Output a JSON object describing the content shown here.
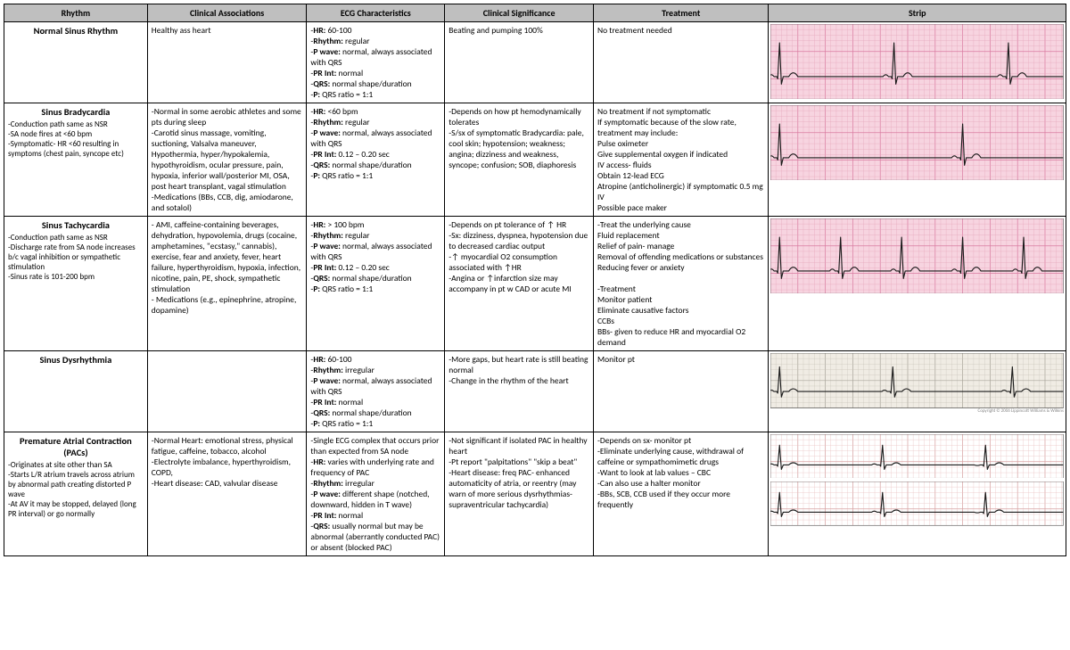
{
  "headers": [
    "Rhythm",
    "Clinical Associations",
    "ECG Characteristics",
    "Clinical Significance",
    "Treatment",
    "Strip"
  ],
  "rows": [
    {
      "name": "Normal Sinus Rhythm",
      "sub": "",
      "assoc": "Healthy ass heart",
      "ecg": "-<b>HR:</b> 60-100<br>-<b>Rhythm:</b> regular<br>-<b>P wave:</b> normal, always associated with QRS<br>-<b>PR Int:</b> normal<br>-<b>QRS:</b> normal shape/duration<br>-<b>P:</b> QRS ratio = 1:1",
      "sig": "Beating and pumping 100%",
      "tx": "No treatment needed",
      "strip": {
        "bg": "#f7d4e0",
        "grid": "#e6a6bb",
        "majGrid": "#d97aa0",
        "hr": 72,
        "rhythm": "regular",
        "pac": false,
        "height": 82
      }
    },
    {
      "name": "Sinus Bradycardia",
      "sub": "-Conduction path same as NSR<br>-SA node fires at &lt;60 bpm<br>-Symptomatic- HR &lt;60 resulting in symptoms (chest pain, syncope etc)",
      "assoc": "-Normal in some aerobic athletes and some pts during sleep<br>-Carotid sinus massage, vomiting, suctioning, Valsalva maneuver, Hypothermia, hyper/hypokalemia, hypothyroidism, ocular pressure, pain, hypoxia, inferior wall/posterior MI, OSA, post heart transplant, vagal stimulation<br>-Medications (BBs, CCB, dig, amiodarone, and sotalol)",
      "ecg": "-<b>HR:</b> &lt;60 bpm<br>-<b>Rhythm:</b> regular<br>-<b>P wave:</b> normal, always associated with QRS<br>-<b>PR Int:</b> 0.12 – 0.20 sec<br>-<b>QRS:</b> normal shape/duration<br>-<b>P:</b> QRS ratio = 1:1",
      "sig": "-Depends on how pt hemodynamically tolerates<br>-S/sx of symptomatic Bradycardia: pale, cool skin; hypotension; weakness; angina; dizziness and weakness, syncope; confusion; SOB, diaphoresis",
      "tx": "No treatment if not symptomatic<br>If symptomatic because of the slow rate, treatment may include:<br>Pulse oximeter<br>Give supplemental oxygen if indicated<br>IV access- fluids<br>Obtain 12-lead ECG<br>Atropine (anticholinergic) if symptomatic 0.5 mg IV<br>Possible pace maker",
      "strip": {
        "bg": "#f7d4e0",
        "grid": "#e6a6bb",
        "majGrid": "#d97aa0",
        "hr": 45,
        "rhythm": "regular",
        "pac": false,
        "height": 82
      }
    },
    {
      "name": "Sinus Tachycardia",
      "sub": "-Conduction path same as NSR<br>-Discharge rate from SA node increases b/c vagal inhibition or sympathetic stimulation<br>-Sinus rate is 101-200 bpm",
      "assoc": "- AMI, caffeine-containing beverages, dehydration, hypovolemia, drugs (cocaine, amphetamines, \"ecstasy,\" cannabis), exercise, fear and anxiety, fever, heart failure, hyperthyroidism, hypoxia, infection, nicotine, pain, PE, shock, sympathetic stimulation<br>- Medications (e.g., epinephrine, atropine, dopamine)",
      "ecg": "-<b>HR:</b> &gt; 100 bpm<br>-<b>Rhythm:</b> regular<br>-<b>P wave:</b> normal, always associated with QRS<br>-<b>PR Int:</b> 0.12 – 0.20 sec<br>-<b>QRS:</b> normal shape/duration<br>-<b>P:</b> QRS ratio = 1:1",
      "sig": "-Depends on pt tolerance of ↑ HR<br>-Sx: dizziness, dyspnea, hypotension due to decreased cardiac output<br>-↑ myocardial O2 consumption associated with ↑HR<br>-Angina or ↑infarction size may accompany in pt w CAD or acute MI",
      "tx": "-Treat the underlying cause<br>Fluid replacement<br>Relief of pain- manage<br>Removal of offending medications or substances<br>Reducing fever or anxiety<br><br>-Treatment<br>Monitor patient<br>Eliminate causative factors<br>CCBs<br>BBs- given to reduce HR and myocardial O2 demand",
      "strip": {
        "bg": "#f7d4e0",
        "grid": "#e6a6bb",
        "majGrid": "#d97aa0",
        "hr": 135,
        "rhythm": "regular",
        "pac": false,
        "height": 82
      }
    },
    {
      "name": "Sinus Dysrhythmia",
      "sub": "",
      "assoc": "",
      "ecg": "-<b>HR:</b> 60-100<br>-<b>Rhythm:</b> irregular<br>-<b>P wave:</b> normal, always associated with QRS<br>-<b>PR Int:</b> normal<br>-<b>QRS:</b> normal shape/duration<br>-<b>P:</b> QRS ratio = 1:1",
      "sig": "-More gaps, but heart rate is still beating normal<br>-Change in the rhythm of the heart",
      "tx": "Monitor pt",
      "strip": {
        "bg": "#f0ece4",
        "grid": "#c8c4ba",
        "majGrid": "#a8a49a",
        "hr": 75,
        "rhythm": "irregular",
        "pac": false,
        "height": 60,
        "caption": true
      }
    },
    {
      "name": "Premature Atrial Contraction (PACs)",
      "sub": "-Originates at site other than SA<br>-Starts L/R atrium travels across atrium by abnormal path creating distorted P wave<br>-At AV it may be stopped, delayed (long PR interval) or go normally",
      "assoc": "-Normal Heart: emotional stress, physical fatigue, caffeine, tobacco, alcohol<br>-Electrolyte imbalance, hyperthyroidism, COPD,<br>-Heart disease: CAD, valvular disease",
      "ecg": "-Single ECG complex that occurs prior than expected from SA node<br>-<b>HR:</b> varies with underlying rate and frequency of PAC<br>-<b>Rhythm:</b> irregular<br>-<b>P wave:</b> different shape (notched, downward, hidden in T wave)<br>-<b>PR Int:</b> normal<br>-<b>QRS:</b> usually normal but may be abnormal (aberrantly conducted PAC) or absent (blocked PAC)",
      "sig": "-Not significant if isolated PAC in healthy heart<br>-Pt report \"palpitations\" \"skip a beat\"<br>-Heart disease: freq PAC- enhanced automaticity of atria, or reentry (may warn of more serious dysrhythmias- supraventricular tachycardia)",
      "tx": "-Depends on sx- monitor pt<br>-Eliminate underlying cause, withdrawal of caffeine or sympathomimetic drugs<br>-Want to look at lab values – CBC<br>-Can also use a halter monitor<br>-BBs, SCB, CCB used if they occur more frequently",
      "strip": {
        "bg": "#ffffff",
        "grid": "#e8c0c0",
        "majGrid": "#d6a0a0",
        "hr": 80,
        "rhythm": "regular",
        "pac": true,
        "height": 100,
        "double": true
      }
    }
  ],
  "stripStyle": {
    "trace": "#1a1a1a",
    "traceWidth": 1.1,
    "minorStep": 6,
    "majorStep": 30
  }
}
